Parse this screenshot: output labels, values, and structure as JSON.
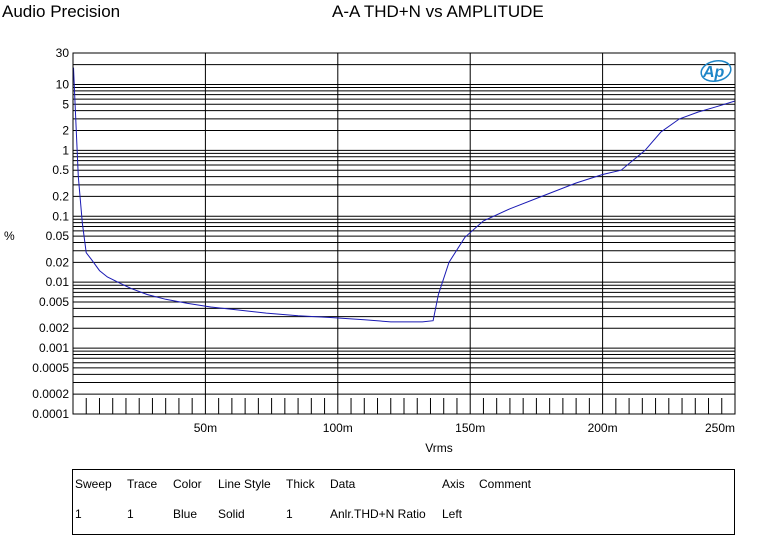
{
  "header": {
    "brand": "Audio Precision",
    "title": "A-A THD+N vs AMPLITUDE"
  },
  "logo": {
    "text": "Ap"
  },
  "colors": {
    "trace": "#1a1ab4",
    "grid": "#000000",
    "background": "#ffffff"
  },
  "chart_data": {
    "type": "line",
    "title": "A-A THD+N vs AMPLITUDE",
    "xlabel": "Vrms",
    "ylabel": "%",
    "xscale": "linear",
    "yscale": "log",
    "xlim": [
      0,
      0.25
    ],
    "ylim": [
      0.0001,
      30
    ],
    "grid": true,
    "x_ticks": [
      {
        "value": 0.05,
        "label": "50m"
      },
      {
        "value": 0.1,
        "label": "100m"
      },
      {
        "value": 0.15,
        "label": "150m"
      },
      {
        "value": 0.2,
        "label": "200m"
      },
      {
        "value": 0.25,
        "label": "250m"
      }
    ],
    "y_ticks": [
      {
        "value": 30,
        "label": "30"
      },
      {
        "value": 10,
        "label": "10"
      },
      {
        "value": 5,
        "label": "5"
      },
      {
        "value": 2,
        "label": "2"
      },
      {
        "value": 1,
        "label": "1"
      },
      {
        "value": 0.5,
        "label": "0.5"
      },
      {
        "value": 0.2,
        "label": "0.2"
      },
      {
        "value": 0.1,
        "label": "0.1"
      },
      {
        "value": 0.05,
        "label": "0.05"
      },
      {
        "value": 0.02,
        "label": "0.02"
      },
      {
        "value": 0.01,
        "label": "0.01"
      },
      {
        "value": 0.005,
        "label": "0.005"
      },
      {
        "value": 0.002,
        "label": "0.002"
      },
      {
        "value": 0.001,
        "label": "0.001"
      },
      {
        "value": 0.0005,
        "label": "0.0005"
      },
      {
        "value": 0.0002,
        "label": "0.0002"
      },
      {
        "value": 0.0001,
        "label": "0.0001"
      }
    ],
    "series": [
      {
        "x": [
          0.0002,
          0.0008,
          0.002,
          0.0035,
          0.005,
          0.007,
          0.01,
          0.013,
          0.017,
          0.022,
          0.028,
          0.035,
          0.043,
          0.052,
          0.062,
          0.073,
          0.085,
          0.098,
          0.11,
          0.12,
          0.128,
          0.132,
          0.136,
          0.138,
          0.142,
          0.148,
          0.155,
          0.165,
          0.177,
          0.19,
          0.2,
          0.207,
          0.211,
          0.216,
          0.222,
          0.229,
          0.236,
          0.243,
          0.25
        ],
        "y": [
          18.0,
          5.0,
          0.4,
          0.08,
          0.028,
          0.022,
          0.015,
          0.012,
          0.01,
          0.008,
          0.0065,
          0.0055,
          0.0048,
          0.0042,
          0.0038,
          0.0034,
          0.0031,
          0.0029,
          0.0027,
          0.0025,
          0.0025,
          0.0025,
          0.0026,
          0.0065,
          0.02,
          0.048,
          0.085,
          0.13,
          0.2,
          0.32,
          0.43,
          0.5,
          0.68,
          1.0,
          1.9,
          3.0,
          3.8,
          4.6,
          5.6
        ]
      }
    ]
  },
  "legend": {
    "headers": [
      "Sweep",
      "Trace",
      "Color",
      "Line Style",
      "Thick",
      "Data",
      "Axis",
      "Comment"
    ],
    "rows": [
      [
        "1",
        "1",
        "Blue",
        "Solid",
        "1",
        "Anlr.THD+N Ratio",
        "Left",
        ""
      ]
    ]
  }
}
